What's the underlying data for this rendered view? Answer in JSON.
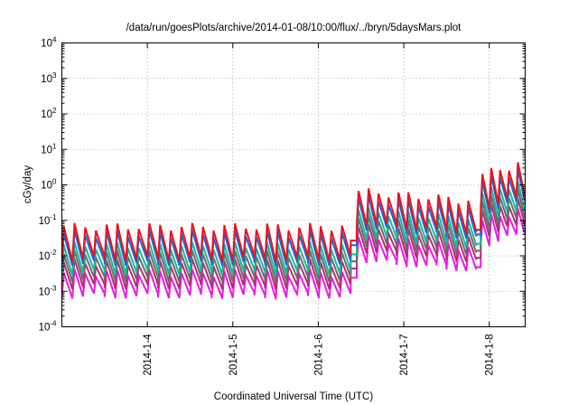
{
  "chart_data": {
    "type": "line",
    "title": "/data/run/goesPlots/archive/2014-01-08/10:00/flux/../bryn/5daysMars.plot",
    "xlabel": "Coordinated Universal Time (UTC)",
    "ylabel": "cGy/day",
    "yscale": "log",
    "ylim": [
      0.0001,
      10000
    ],
    "xlim_days": [
      3.0,
      8.42
    ],
    "grid": true,
    "legend": "none",
    "x_ticks": [
      {
        "day": 4,
        "label": "2014-1-4"
      },
      {
        "day": 5,
        "label": "2014-1-5"
      },
      {
        "day": 6,
        "label": "2014-1-6"
      },
      {
        "day": 7,
        "label": "2014-1-7"
      },
      {
        "day": 8,
        "label": "2014-1-8"
      }
    ],
    "y_ticks": [
      {
        "value": 0.0001,
        "base": "10",
        "exp": "-4"
      },
      {
        "value": 0.001,
        "base": "10",
        "exp": "-3"
      },
      {
        "value": 0.01,
        "base": "10",
        "exp": "-2"
      },
      {
        "value": 0.1,
        "base": "10",
        "exp": "-1"
      },
      {
        "value": 1,
        "base": "10",
        "exp": "0"
      },
      {
        "value": 10,
        "base": "10",
        "exp": "1"
      },
      {
        "value": 100,
        "base": "10",
        "exp": "2"
      },
      {
        "value": 1000,
        "base": "10",
        "exp": "3"
      },
      {
        "value": 10000,
        "base": "10",
        "exp": "4"
      }
    ],
    "segments": [
      {
        "start": 3.0,
        "end": 6.38,
        "low": 0.01,
        "cycle": 0.125
      },
      {
        "start": 6.38,
        "end": 6.45,
        "flat": 0.02
      },
      {
        "start": 6.45,
        "end": 7.85,
        "low": 0.1,
        "cycle": 0.117,
        "decay": 0.55
      },
      {
        "start": 7.85,
        "end": 7.9,
        "flat": 0.04
      },
      {
        "start": 7.9,
        "end": 8.42,
        "low": 0.3,
        "cycle": 0.1,
        "growth": 1.9
      }
    ],
    "series": [
      {
        "color": "#e8141e",
        "scale": 1.35,
        "peak": 5.0
      },
      {
        "color": "#1a66e0",
        "scale": 1.0,
        "peak": 4.2
      },
      {
        "color": "#17b89a",
        "scale": 0.55,
        "peak": 3.6
      },
      {
        "color": "#6b6b6b",
        "scale": 0.35,
        "peak": 3.3
      },
      {
        "color": "#b0306e",
        "scale": 0.22,
        "peak": 3.0
      },
      {
        "color": "#ee18e6",
        "scale": 0.12,
        "peak": 2.8
      }
    ]
  }
}
